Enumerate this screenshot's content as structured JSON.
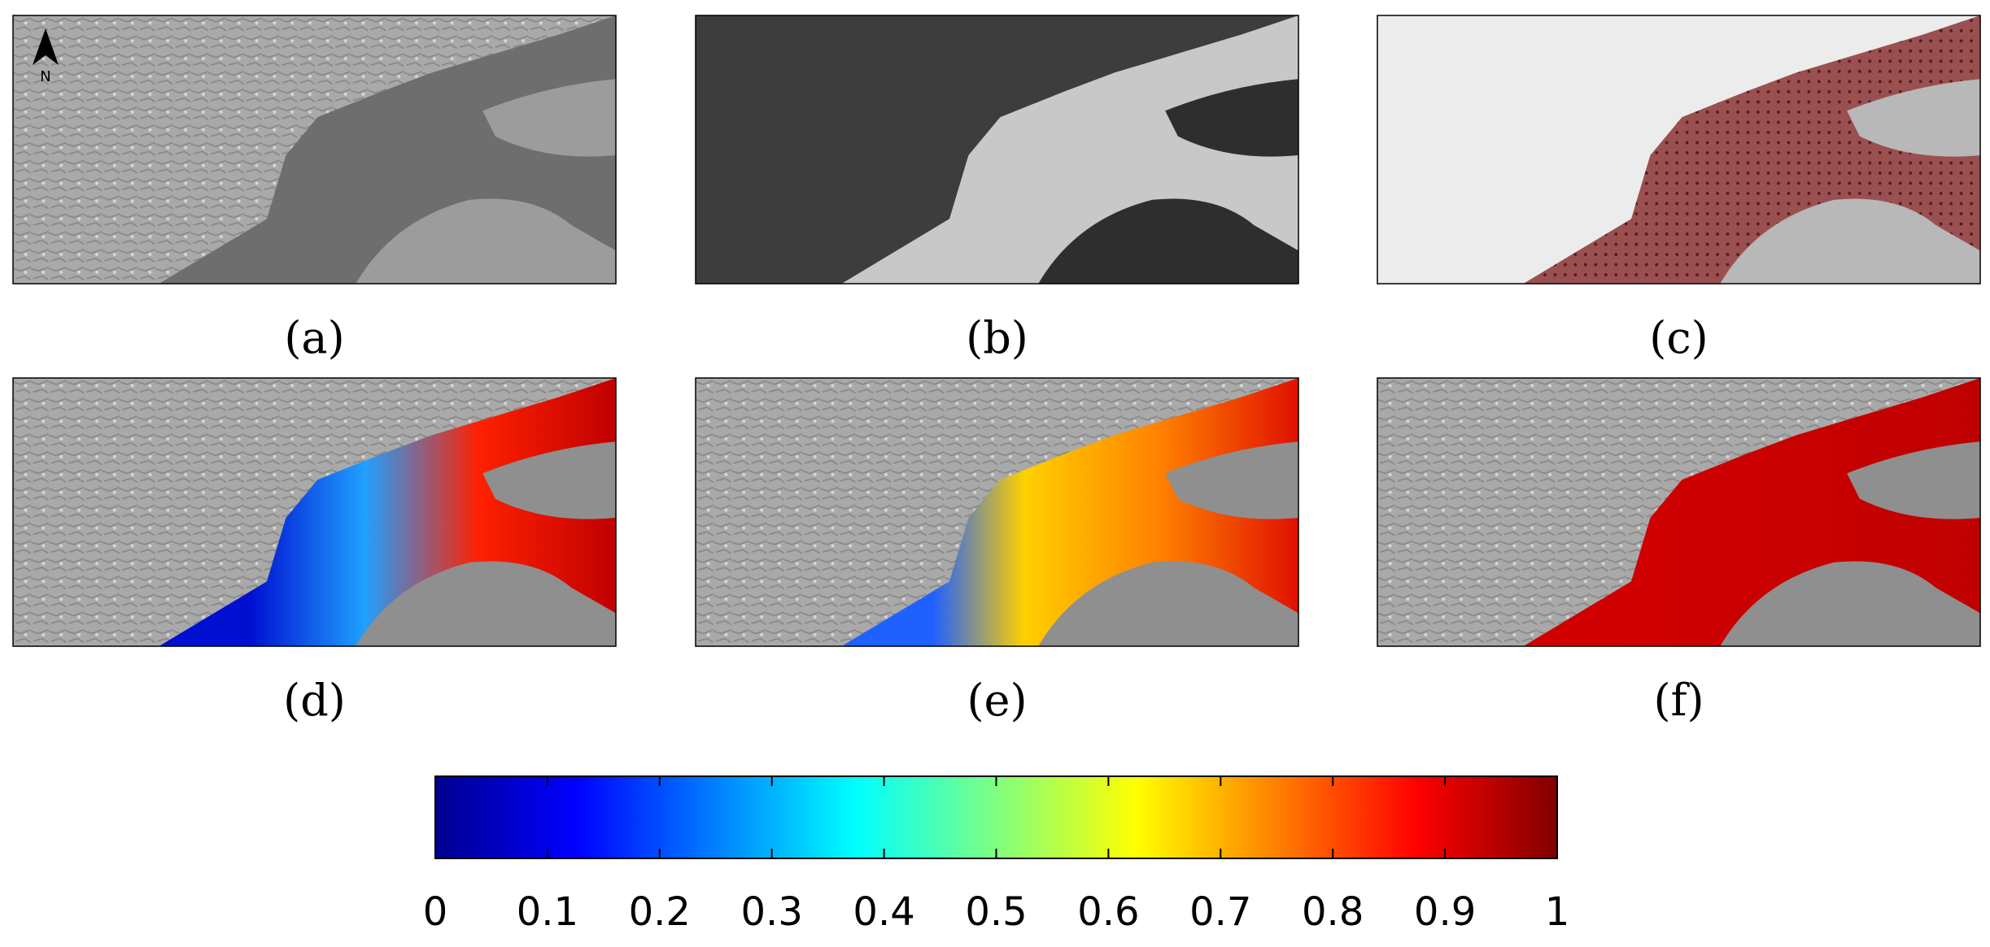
{
  "panels": [
    {
      "label": "(a)"
    },
    {
      "label": "(b)"
    },
    {
      "label": "(c)"
    },
    {
      "label": "(d)"
    },
    {
      "label": "(e)"
    },
    {
      "label": "(f)"
    }
  ],
  "north_arrow": "N",
  "colorbar": {
    "lim": [
      0,
      1
    ],
    "ticks": [
      0,
      0.1,
      0.2,
      0.3,
      0.4,
      0.5,
      0.6,
      0.7,
      0.8,
      0.9,
      1
    ]
  }
}
